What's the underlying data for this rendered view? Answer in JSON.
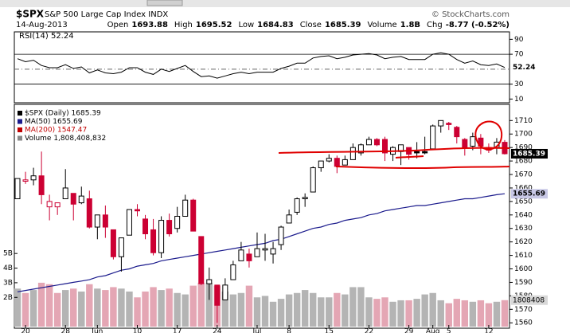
{
  "header": {
    "symbol": "$SPX",
    "name": "S&P 500 Large Cap Index INDX",
    "copyright": "© StockCharts.com",
    "date": "14-Aug-2013",
    "stats": [
      {
        "label": "Open",
        "value": "1693.88"
      },
      {
        "label": "High",
        "value": "1695.52"
      },
      {
        "label": "Low",
        "value": "1684.83"
      },
      {
        "label": "Close",
        "value": "1685.39"
      },
      {
        "label": "Volume",
        "value": "1.8B"
      },
      {
        "label": "Chg",
        "value": "-8.77 (-0.52%)"
      }
    ]
  },
  "chart_data": {
    "type": "candlestick",
    "categories": [
      null,
      "20",
      null,
      null,
      null,
      null,
      "28",
      null,
      null,
      null,
      "Jun",
      null,
      null,
      null,
      null,
      "10",
      null,
      null,
      null,
      null,
      "17",
      null,
      null,
      null,
      null,
      "24",
      null,
      null,
      null,
      null,
      "Jul",
      null,
      null,
      null,
      "8",
      null,
      null,
      null,
      null,
      "15",
      null,
      null,
      null,
      null,
      "22",
      null,
      null,
      null,
      null,
      "29",
      null,
      null,
      "Aug",
      null,
      "5",
      null,
      null,
      null,
      null,
      "12",
      null,
      null
    ],
    "open": [
      1652,
      1665,
      1666,
      1669,
      1646,
      1646,
      1652,
      1656,
      1649,
      1652,
      1631,
      1640,
      1629,
      1609,
      1625,
      1644,
      1637,
      1629,
      1612,
      1636,
      1630,
      1639,
      1651,
      1624,
      1589,
      1588,
      1577,
      1592,
      1606,
      1611,
      1609,
      1614,
      1611,
      1618,
      1634,
      1642,
      1652,
      1657,
      1675,
      1680,
      1682,
      1677,
      1681,
      1686,
      1692,
      1696,
      1696,
      1685,
      1687,
      1690,
      1687,
      1687,
      1689,
      1706,
      1708,
      1705,
      1696,
      1691,
      1697,
      1688,
      1690,
      1693.88
    ],
    "high": [
      1667,
      1672,
      1675,
      1687,
      1655,
      1649,
      1674,
      1656,
      1661,
      1658,
      1640,
      1647,
      1629,
      1623,
      1644,
      1648,
      1640,
      1637,
      1639,
      1641,
      1646,
      1655,
      1652,
      1624,
      1601,
      1588,
      1593,
      1606,
      1620,
      1615,
      1627,
      1626,
      1620,
      1632,
      1644,
      1653,
      1656,
      1676,
      1680,
      1685,
      1684,
      1684,
      1693,
      1693,
      1698,
      1697,
      1698,
      1691,
      1692,
      1690,
      1694,
      1698,
      1707,
      1710,
      1709,
      1706,
      1697,
      1701,
      1700,
      1693,
      1697,
      1695.52
    ],
    "low": [
      1652,
      1663,
      1662,
      1648,
      1636,
      1640,
      1652,
      1636,
      1648,
      1630,
      1622,
      1623,
      1607,
      1598,
      1625,
      1639,
      1622,
      1610,
      1608,
      1624,
      1627,
      1639,
      1628,
      1588,
      1577,
      1560,
      1577,
      1592,
      1606,
      1601,
      1609,
      1606,
      1604,
      1614,
      1634,
      1640,
      1646,
      1657,
      1672,
      1679,
      1671,
      1677,
      1681,
      1684,
      1692,
      1691,
      1680,
      1680,
      1677,
      1681,
      1682,
      1685,
      1689,
      1701,
      1703,
      1693,
      1684,
      1688,
      1685,
      1686,
      1685,
      1684.83
    ],
    "close": [
      1667,
      1666,
      1669,
      1655,
      1650,
      1649,
      1660,
      1648,
      1654,
      1631,
      1640,
      1631,
      1609,
      1623,
      1644,
      1643,
      1626,
      1612,
      1636,
      1626,
      1639,
      1651,
      1628,
      1589,
      1592,
      1573,
      1588,
      1603,
      1614,
      1606,
      1615,
      1615,
      1615,
      1631,
      1640,
      1652,
      1653,
      1675,
      1680,
      1682,
      1676,
      1681,
      1690,
      1692,
      1696,
      1692,
      1686,
      1690,
      1692,
      1685,
      1686,
      1686,
      1706,
      1710,
      1707,
      1698,
      1690,
      1698,
      1691,
      1690,
      1694,
      1685.39
    ],
    "up_color": "#000000",
    "down_color": "#cc0033",
    "ylim": [
      1556,
      1722
    ],
    "yticks": [
      1560,
      1570,
      1580,
      1590,
      1600,
      1610,
      1620,
      1630,
      1640,
      1650,
      1660,
      1670,
      1680,
      1690,
      1700,
      1710
    ],
    "ma50": {
      "color": "#1a1a8c",
      "values": [
        1583,
        1584,
        1585,
        1586,
        1587,
        1588,
        1589,
        1590,
        1591,
        1592,
        1594,
        1595,
        1597,
        1599,
        1600,
        1602,
        1603,
        1604,
        1606,
        1607,
        1608,
        1609,
        1610,
        1611,
        1612,
        1613,
        1614,
        1615,
        1616,
        1617,
        1618,
        1619,
        1621,
        1622,
        1624,
        1626,
        1628,
        1630,
        1631,
        1633,
        1634,
        1636,
        1637,
        1638,
        1640,
        1641,
        1643,
        1644,
        1645,
        1646,
        1647,
        1647,
        1648,
        1649,
        1650,
        1651,
        1652,
        1652,
        1653,
        1654,
        1655,
        1655.69
      ]
    },
    "legend": [
      {
        "text": "$SPX (Daily) 1685.39",
        "color": "#000000"
      },
      {
        "text": "MA(50) 1655.69",
        "color": "#1a1a8c"
      },
      {
        "text": "MA(200) 1547.47",
        "color": "#c00000"
      },
      {
        "text": "Volume 1,808,408,832",
        "color": "#888888"
      }
    ],
    "volume": [
      2.6,
      2.3,
      2.5,
      3.0,
      2.9,
      2.3,
      2.5,
      2.6,
      2.4,
      2.9,
      2.6,
      2.5,
      2.7,
      2.6,
      2.4,
      2.0,
      2.4,
      2.7,
      2.5,
      2.6,
      2.3,
      2.2,
      2.8,
      3.0,
      3.0,
      2.8,
      2.4,
      2.2,
      2.3,
      2.8,
      2.0,
      2.1,
      1.7,
      1.9,
      2.2,
      2.3,
      2.5,
      2.3,
      2.0,
      2.0,
      2.3,
      2.2,
      2.7,
      2.7,
      2.0,
      1.9,
      2.0,
      1.7,
      1.8,
      1.8,
      1.9,
      2.2,
      2.3,
      1.8,
      1.6,
      1.9,
      1.8,
      1.7,
      1.8,
      1.6,
      1.7,
      1.81
    ],
    "volume_up_color": "#b4b4b4",
    "volume_down_color": "#e4a6b4",
    "volume_ylim": [
      0,
      5.5
    ],
    "volume_yticks": [
      {
        "value": 2,
        "label": "2B"
      },
      {
        "value": 3,
        "label": "3B"
      },
      {
        "value": 4,
        "label": "4B"
      },
      {
        "value": 5,
        "label": "5B"
      }
    ],
    "volume_label": "1808408",
    "rsi": {
      "label": "RSI(14) 52.24",
      "color": "#000000",
      "ylim": [
        5,
        100
      ],
      "yticks": [
        90,
        70,
        30,
        10
      ],
      "lines": [
        70,
        30
      ],
      "dashed_line": 50,
      "values": [
        64,
        60,
        62,
        55,
        52,
        52,
        56,
        51,
        53,
        45,
        49,
        45,
        44,
        46,
        52,
        52,
        46,
        43,
        50,
        47,
        51,
        55,
        47,
        40,
        41,
        38,
        41,
        44,
        46,
        44,
        46,
        46,
        46,
        51,
        54,
        58,
        58,
        65,
        67,
        68,
        64,
        66,
        69,
        70,
        71,
        69,
        64,
        66,
        67,
        63,
        63,
        63,
        70,
        72,
        70,
        63,
        58,
        61,
        56,
        55,
        57,
        52.24
      ]
    }
  }
}
